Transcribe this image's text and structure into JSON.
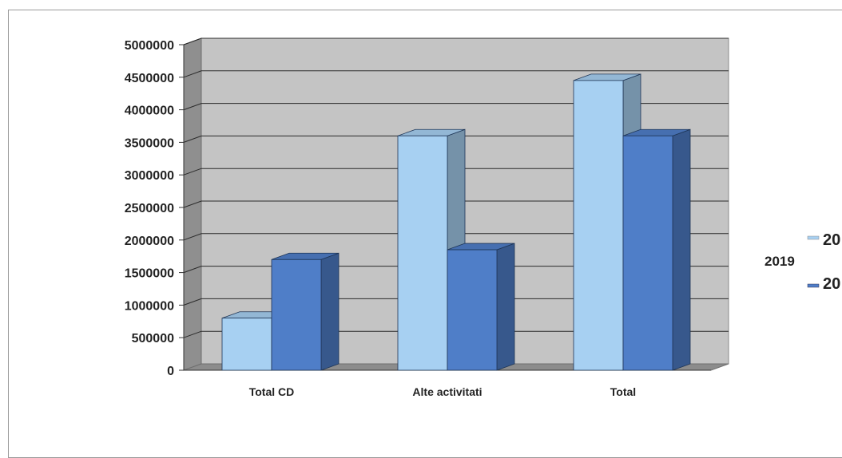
{
  "chart_data": {
    "type": "bar",
    "title": "",
    "xlabel": "",
    "ylabel": "",
    "categories": [
      "Total CD",
      "Alte activitati",
      "Total"
    ],
    "series": [
      {
        "color": "#a7d0f2",
        "values": [
          800000,
          3600000,
          4450000
        ]
      },
      {
        "color": "#4f7ec8",
        "values": [
          1700000,
          1850000,
          3600000
        ]
      }
    ],
    "ylim": [
      0,
      5000000
    ],
    "yticks": [
      "0",
      "500000",
      "1000000",
      "1500000",
      "2000000",
      "2500000",
      "3000000",
      "3500000",
      "4000000",
      "4500000",
      "5000000"
    ],
    "grid": true,
    "legend": {
      "placement": "right",
      "title": "2019",
      "entries": [
        {
          "text": "20",
          "color": "#a7d0f2"
        },
        {
          "text": "20",
          "color": "#4f7ec8"
        }
      ]
    }
  }
}
